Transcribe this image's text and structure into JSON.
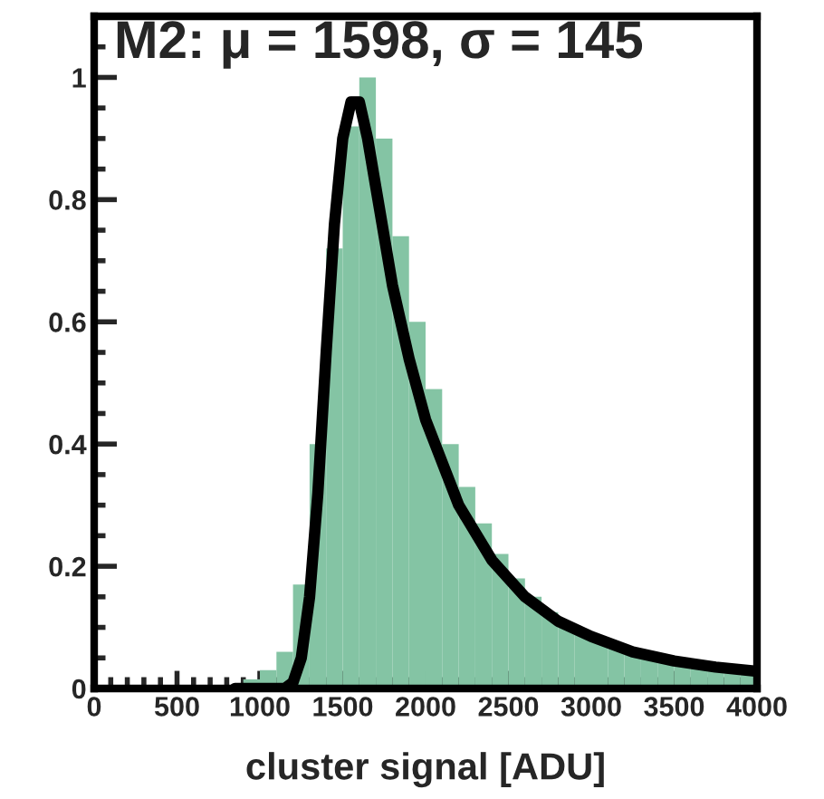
{
  "chart_data": {
    "type": "histogram",
    "title": "M2: μ = 1598, σ = 145",
    "xlabel": "cluster signal [ADU]",
    "xlim": [
      0,
      4000
    ],
    "ylim": [
      0,
      1.1
    ],
    "xticks": [
      0,
      {
        "value": 100,
        "label": null
      },
      {
        "value": 200,
        "label": null
      },
      {
        "value": 300,
        "label": null
      },
      {
        "value": 400,
        "label": null
      },
      500,
      {
        "value": 600,
        "label": null
      },
      {
        "value": 700,
        "label": null
      },
      {
        "value": 800,
        "label": null
      },
      {
        "value": 900,
        "label": null
      },
      1000,
      {
        "value": 1100,
        "label": null
      },
      {
        "value": 1200,
        "label": null
      },
      {
        "value": 1300,
        "label": null
      },
      {
        "value": 1400,
        "label": null
      },
      1500,
      {
        "value": 1600,
        "label": null
      },
      {
        "value": 1700,
        "label": null
      },
      {
        "value": 1800,
        "label": null
      },
      {
        "value": 1900,
        "label": null
      },
      2000,
      {
        "value": 2100,
        "label": null
      },
      {
        "value": 2200,
        "label": null
      },
      {
        "value": 2300,
        "label": null
      },
      {
        "value": 2400,
        "label": null
      },
      2500,
      {
        "value": 2600,
        "label": null
      },
      {
        "value": 2700,
        "label": null
      },
      {
        "value": 2800,
        "label": null
      },
      {
        "value": 2900,
        "label": null
      },
      3000,
      {
        "value": 3100,
        "label": null
      },
      {
        "value": 3200,
        "label": null
      },
      {
        "value": 3300,
        "label": null
      },
      {
        "value": 3400,
        "label": null
      },
      3500,
      {
        "value": 3600,
        "label": null
      },
      {
        "value": 3700,
        "label": null
      },
      {
        "value": 3800,
        "label": null
      },
      {
        "value": 3900,
        "label": null
      },
      4000
    ],
    "yticks": [
      0,
      {
        "value": 0.05,
        "label": null
      },
      {
        "value": 0.1,
        "label": null
      },
      {
        "value": 0.15,
        "label": null
      },
      0.2,
      {
        "value": 0.25,
        "label": null
      },
      {
        "value": 0.3,
        "label": null
      },
      {
        "value": 0.35,
        "label": null
      },
      0.4,
      {
        "value": 0.45,
        "label": null
      },
      {
        "value": 0.5,
        "label": null
      },
      {
        "value": 0.55,
        "label": null
      },
      0.6,
      {
        "value": 0.65,
        "label": null
      },
      {
        "value": 0.7,
        "label": null
      },
      {
        "value": 0.75,
        "label": null
      },
      0.8,
      {
        "value": 0.85,
        "label": null
      },
      {
        "value": 0.9,
        "label": null
      },
      {
        "value": 0.95,
        "label": null
      },
      1,
      {
        "value": 1.05,
        "label": null
      }
    ],
    "grid": false,
    "series": [
      {
        "color": "#84c4a4",
        "bins": [
          900,
          1000,
          1100,
          1200,
          1300,
          1400,
          1500,
          1600,
          1700,
          1800,
          1900,
          2000,
          2100,
          2200,
          2300,
          2400,
          2500,
          2600,
          2700,
          2800,
          2900,
          3000,
          3100,
          3200,
          3300,
          3400,
          3500,
          3600,
          3700,
          3800,
          3900,
          4000
        ],
        "values": [
          0.015,
          0.03,
          0.06,
          0.17,
          0.4,
          0.72,
          0.92,
          1.0,
          0.9,
          0.74,
          0.6,
          0.49,
          0.4,
          0.33,
          0.27,
          0.22,
          0.18,
          0.15,
          0.125,
          0.105,
          0.09,
          0.077,
          0.066,
          0.057,
          0.05,
          0.044,
          0.039,
          0.035,
          0.031,
          0.028,
          0.025
        ]
      },
      {
        "type": "line",
        "color": "#000000",
        "line_style": "solid",
        "marker": "none",
        "x": [
          850,
          1150,
          1200,
          1250,
          1300,
          1350,
          1400,
          1450,
          1500,
          1550,
          1600,
          1650,
          1700,
          1800,
          1900,
          2000,
          2200,
          2400,
          2600,
          2800,
          3000,
          3250,
          3500,
          3750,
          4000
        ],
        "values": [
          0,
          0,
          0.01,
          0.05,
          0.15,
          0.32,
          0.55,
          0.76,
          0.9,
          0.96,
          0.96,
          0.9,
          0.82,
          0.66,
          0.54,
          0.44,
          0.3,
          0.21,
          0.15,
          0.11,
          0.085,
          0.06,
          0.045,
          0.035,
          0.028
        ]
      }
    ]
  }
}
